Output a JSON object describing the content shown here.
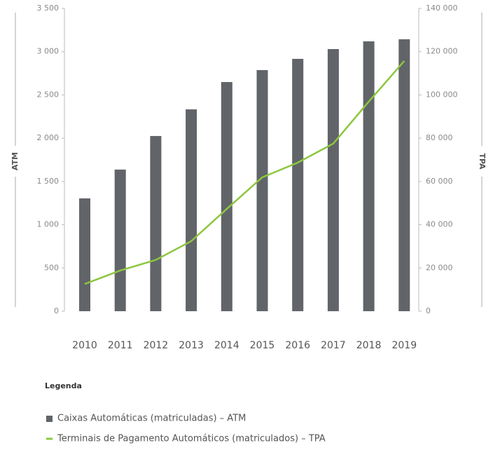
{
  "chart_data": {
    "type": "bar-line",
    "categories": [
      "2010",
      "2011",
      "2012",
      "2013",
      "2014",
      "2015",
      "2016",
      "2017",
      "2018",
      "2019"
    ],
    "series": [
      {
        "name": "Caixas Automáticas (matriculadas) – ATM",
        "color": "#616469",
        "type": "bar",
        "axis": "y",
        "values": [
          1304,
          1637,
          2025,
          2333,
          2649,
          2787,
          2917,
          3030,
          3119,
          3143
        ]
      },
      {
        "name": "Terminais de Pagamento Automáticos (matriculados) – TPA",
        "color": "#8dc63f",
        "type": "line",
        "axis": "y2",
        "values": [
          12600,
          18800,
          23700,
          32400,
          47300,
          61900,
          68700,
          77500,
          96900,
          115700
        ]
      }
    ],
    "ylabel": "ATM",
    "y2label": "TPA",
    "ylim": [
      0,
      3500
    ],
    "yticks": [
      0,
      500,
      {
        "value": 1000,
        "label": "1 000"
      },
      {
        "value": 1500,
        "label": "1 500"
      },
      {
        "value": 2000,
        "label": "2 000"
      },
      {
        "value": 2500,
        "label": "2 500"
      },
      {
        "value": 3000,
        "label": "3 000"
      },
      {
        "value": 3500,
        "label": "3 500"
      }
    ],
    "y2lim": [
      0,
      140000
    ],
    "y2ticks": [
      0,
      {
        "value": 20000,
        "label": "20 000"
      },
      {
        "value": 40000,
        "label": "40 000"
      },
      {
        "value": 60000,
        "label": "60 000"
      },
      {
        "value": 80000,
        "label": "80 000"
      },
      {
        "value": 100000,
        "label": "100 000"
      },
      {
        "value": 120000,
        "label": "120 000"
      },
      {
        "value": 140000,
        "label": "140 000"
      }
    ],
    "legend_title": "Legenda"
  }
}
